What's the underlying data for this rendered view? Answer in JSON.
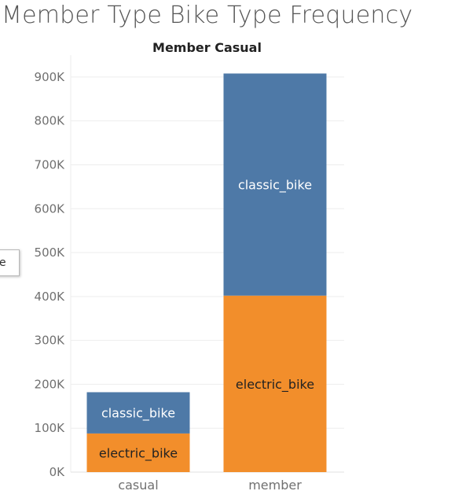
{
  "title": "Member Type Bike Type Frequency",
  "subtitle": "Member Casual",
  "tooltip_fragment": "e",
  "colors": {
    "classic_bike": "#4e79a7",
    "electric_bike": "#f28e2b",
    "classic_label": "#ffffff",
    "electric_label": "#222222",
    "gridline": "#ededed"
  },
  "chart_data": {
    "type": "bar",
    "stacked": true,
    "title": "Member Type Bike Type Frequency",
    "subtitle": "Member Casual",
    "categories": [
      "casual",
      "member"
    ],
    "series": [
      {
        "name": "electric_bike",
        "values": [
          88000,
          402000
        ]
      },
      {
        "name": "classic_bike",
        "values": [
          94000,
          506000
        ]
      }
    ],
    "ylim": [
      0,
      950000
    ],
    "yticks": [
      0,
      100000,
      200000,
      300000,
      400000,
      500000,
      600000,
      700000,
      800000,
      900000
    ],
    "ytick_labels": [
      "0K",
      "100K",
      "200K",
      "300K",
      "400K",
      "500K",
      "600K",
      "700K",
      "800K",
      "900K"
    ],
    "grid": true,
    "legend": "none"
  }
}
